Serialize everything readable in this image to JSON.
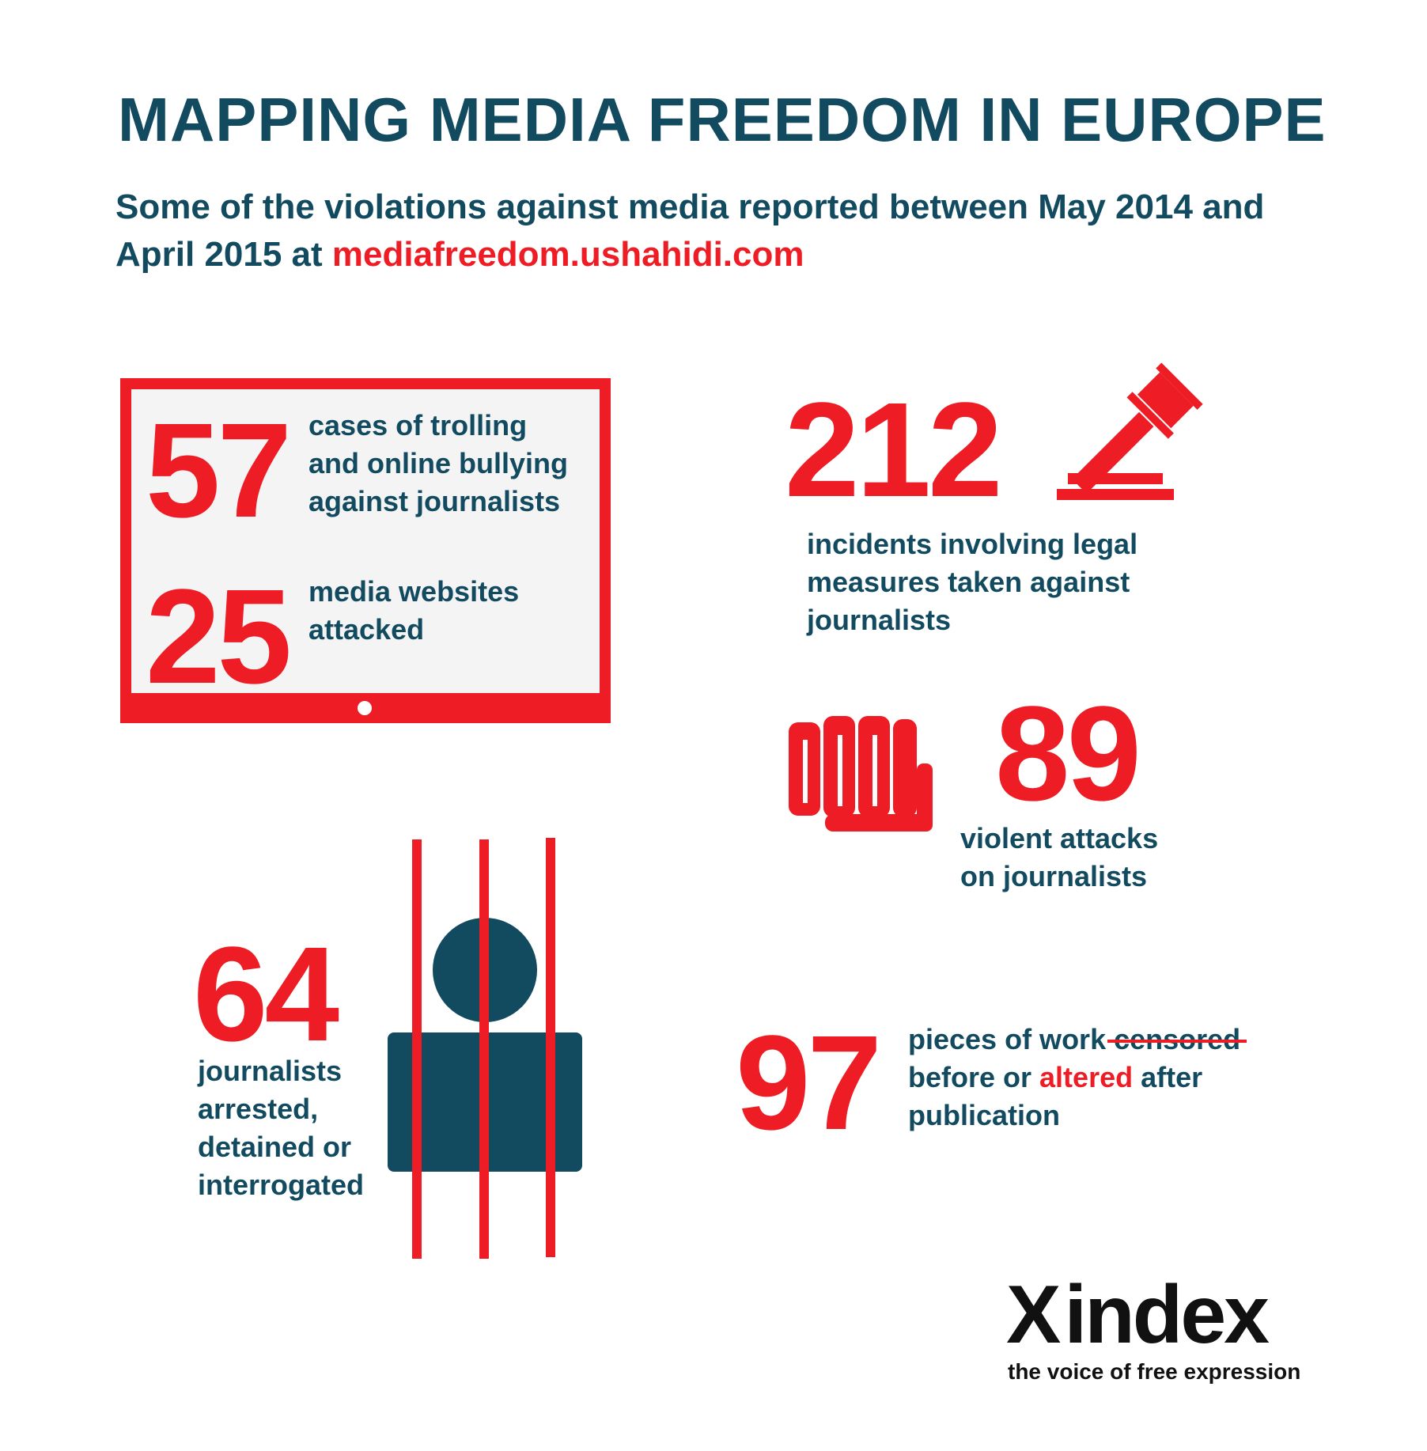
{
  "header": {
    "title": "MAPPING MEDIA FREEDOM IN EUROPE",
    "subtitle_pre": "Some of the violations against media reported between May 2014 and April 2015 at ",
    "subtitle_link": "mediafreedom.ushahidi.com"
  },
  "stats": {
    "trolling": {
      "number": "57",
      "line1": "cases of trolling",
      "line2": "and online bullying",
      "line3": "against journalists"
    },
    "websites": {
      "number": "25",
      "line1": "media websites",
      "line2": "attacked"
    },
    "legal": {
      "number": "212",
      "line1": "incidents involving legal",
      "line2": "measures taken against",
      "line3": "journalists"
    },
    "violent": {
      "number": "89",
      "line1": "violent attacks",
      "line2": "on journalists"
    },
    "arrested": {
      "number": "64",
      "line1": "journalists",
      "line2": "arrested,",
      "line3": "detained or",
      "line4": "interrogated"
    },
    "censored": {
      "number": "97",
      "line1_a": "pieces of work ",
      "line1_strike": "censored",
      "line2_a": "before or ",
      "line2_red": "altered",
      "line2_b": " after",
      "line3": "publication"
    }
  },
  "logo": {
    "mark": "X",
    "name": "index",
    "tagline": "the voice of free expression"
  },
  "colors": {
    "accent": "#ee1c24",
    "navy": "#124a5f",
    "screen": "#f4f4f4"
  },
  "icons": [
    "monitor-icon",
    "gavel-icon",
    "fist-icon",
    "prisoner-icon"
  ]
}
